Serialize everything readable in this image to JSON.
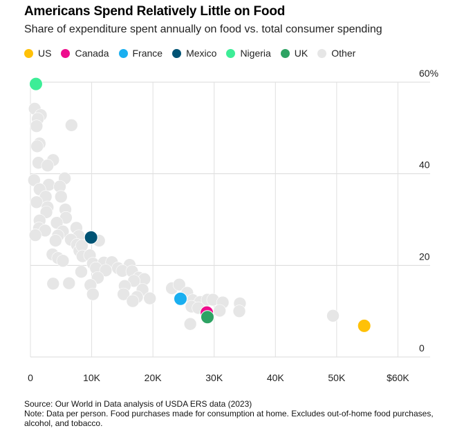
{
  "chart_data": {
    "type": "scatter",
    "title": "Americans Spend Relatively Little on Food",
    "subtitle": "Share of expenditure spent annually on food vs. total consumer spending",
    "xlabel": "",
    "ylabel": "",
    "xlim": [
      0,
      63000
    ],
    "ylim": [
      0,
      60
    ],
    "x_ticks": [
      {
        "value": 0,
        "label": "0"
      },
      {
        "value": 10000,
        "label": "10K"
      },
      {
        "value": 20000,
        "label": "20K"
      },
      {
        "value": 30000,
        "label": "30K"
      },
      {
        "value": 40000,
        "label": "40K"
      },
      {
        "value": 50000,
        "label": "50K"
      },
      {
        "value": 60000,
        "label": "$60K"
      }
    ],
    "y_ticks": [
      {
        "value": 0,
        "label": "0"
      },
      {
        "value": 20,
        "label": "20"
      },
      {
        "value": 40,
        "label": "40"
      },
      {
        "value": 60,
        "label": "60%"
      }
    ],
    "grid": true,
    "legend_position": "top",
    "series": [
      {
        "name": "US",
        "color": "#ffc107",
        "points": [
          [
            54500,
            6.8
          ]
        ]
      },
      {
        "name": "Canada",
        "color": "#ee0c8d",
        "points": [
          [
            28800,
            9.7
          ]
        ]
      },
      {
        "name": "France",
        "color": "#1aaff0",
        "points": [
          [
            24500,
            12.7
          ]
        ]
      },
      {
        "name": "Mexico",
        "color": "#005374",
        "points": [
          [
            9900,
            26.1
          ]
        ]
      },
      {
        "name": "Nigeria",
        "color": "#3ded97",
        "points": [
          [
            900,
            59.6
          ]
        ]
      },
      {
        "name": "UK",
        "color": "#2ea363",
        "points": [
          [
            28900,
            8.7
          ]
        ]
      },
      {
        "name": "Other",
        "color": "#e6e6e6",
        "points": [
          [
            700,
            54.2
          ],
          [
            1700,
            52.8
          ],
          [
            1200,
            52.0
          ],
          [
            1000,
            50.4
          ],
          [
            6700,
            50.6
          ],
          [
            1500,
            46.6
          ],
          [
            1100,
            46.0
          ],
          [
            3700,
            43.0
          ],
          [
            1300,
            42.4
          ],
          [
            2800,
            41.8
          ],
          [
            600,
            38.6
          ],
          [
            5600,
            39.0
          ],
          [
            3000,
            37.6
          ],
          [
            1500,
            36.6
          ],
          [
            4800,
            37.2
          ],
          [
            2500,
            35.0
          ],
          [
            5000,
            35.0
          ],
          [
            1000,
            33.8
          ],
          [
            2800,
            32.7
          ],
          [
            5700,
            32.2
          ],
          [
            2600,
            31.6
          ],
          [
            5800,
            30.4
          ],
          [
            1500,
            29.8
          ],
          [
            4300,
            29.3
          ],
          [
            1400,
            28.1
          ],
          [
            7500,
            28.2
          ],
          [
            2400,
            27.6
          ],
          [
            5300,
            27.4
          ],
          [
            4500,
            26.5
          ],
          [
            7900,
            26.4
          ],
          [
            4100,
            25.4
          ],
          [
            6600,
            25.6
          ],
          [
            11200,
            25.4
          ],
          [
            800,
            26.6
          ],
          [
            7600,
            24.5
          ],
          [
            8000,
            23.2
          ],
          [
            8400,
            24.3
          ],
          [
            3600,
            22.4
          ],
          [
            4500,
            21.6
          ],
          [
            5300,
            21.0
          ],
          [
            8500,
            22.0
          ],
          [
            9700,
            22.2
          ],
          [
            10200,
            20.4
          ],
          [
            12000,
            20.6
          ],
          [
            13300,
            20.7
          ],
          [
            14300,
            19.4
          ],
          [
            10700,
            19.4
          ],
          [
            16200,
            20.1
          ],
          [
            12300,
            18.9
          ],
          [
            15000,
            18.8
          ],
          [
            16600,
            18.7
          ],
          [
            8300,
            18.6
          ],
          [
            11000,
            17.3
          ],
          [
            17700,
            17.3
          ],
          [
            18600,
            17.0
          ],
          [
            16900,
            16.6
          ],
          [
            3700,
            16.0
          ],
          [
            6300,
            16.1
          ],
          [
            9800,
            15.7
          ],
          [
            15400,
            15.5
          ],
          [
            23100,
            15.0
          ],
          [
            24300,
            15.8
          ],
          [
            18300,
            14.7
          ],
          [
            25600,
            14.0
          ],
          [
            10200,
            13.7
          ],
          [
            15200,
            13.7
          ],
          [
            17400,
            13.1
          ],
          [
            19500,
            12.8
          ],
          [
            16700,
            12.2
          ],
          [
            26500,
            12.4
          ],
          [
            27700,
            12.0
          ],
          [
            28900,
            12.5
          ],
          [
            29800,
            12.5
          ],
          [
            31400,
            11.9
          ],
          [
            34200,
            11.7
          ],
          [
            26300,
            11.0
          ],
          [
            27400,
            10.7
          ],
          [
            30900,
            10.1
          ],
          [
            34100,
            10.0
          ],
          [
            26100,
            7.2
          ],
          [
            49400,
            9.0
          ]
        ]
      }
    ]
  },
  "source": "Source: Our World in Data analysis of USDA ERS data (2023)",
  "note": "Note: Data per person. Food purchases made for consumption at home. Excludes out-of-home food purchases, alcohol, and tobacco."
}
